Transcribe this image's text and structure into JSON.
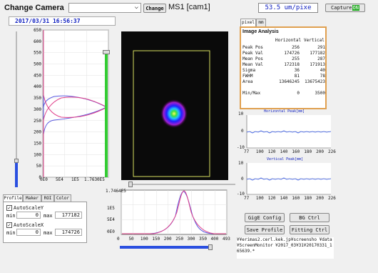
{
  "toolbar": {
    "change_camera_label": "Change Camera",
    "camera_select_value": "",
    "change_button": "Change",
    "camera_name": "MS1 [cam1]",
    "scale_value": "53.5 um/pixe",
    "capture_label": "Capture",
    "capture_state": "ON"
  },
  "timestamp": "2017/03/31  16:56:37",
  "vertical_profile": {
    "x_ticks": [
      "0E0",
      "5E4",
      "1E5",
      "1.7630E5"
    ],
    "y_ticks": [
      "0",
      "50",
      "100",
      "150",
      "200",
      "250",
      "300",
      "350",
      "400",
      "450",
      "500",
      "550",
      "600",
      "650"
    ]
  },
  "horizontal_profile": {
    "y_ticks": [
      "0E0",
      "5E4",
      "1E5",
      "1.7464E5"
    ],
    "x_ticks": [
      "0",
      "50",
      "100",
      "150",
      "200",
      "250",
      "300",
      "350",
      "400",
      "493"
    ]
  },
  "left_tabs": [
    "Profile",
    "Maker",
    "ROI",
    "Color"
  ],
  "autoscale_y": {
    "label": "AutoScaleY",
    "checked": true,
    "min_label": "min",
    "min": "0",
    "max_label": "max",
    "max": "177182"
  },
  "autoscale_x": {
    "label": "AutoScaleX",
    "checked": true,
    "min_label": "min",
    "min": "0",
    "max_label": "max",
    "max": "174726"
  },
  "unit_tabs": [
    "pixel",
    "mm"
  ],
  "analysis": {
    "title": "Image Analysis",
    "col_h": "Horizontal",
    "col_v": "Vertical",
    "rows": [
      {
        "label": "Peak Pos",
        "h": "256",
        "v": "291"
      },
      {
        "label": "Peak Val",
        "h": "174726",
        "v": "177182"
      },
      {
        "label": "Mean Pos",
        "h": "255",
        "v": "287"
      },
      {
        "label": "Mean Val",
        "h": "172318",
        "v": "171913"
      },
      {
        "label": "Sigma",
        "h": "36",
        "v": "40"
      },
      {
        "label": "FWHM",
        "h": "81",
        "v": "78"
      },
      {
        "label": "Area",
        "h": "13646245",
        "v": "13675423"
      },
      {
        "label": "Min/Max",
        "h": "0",
        "v": "3500"
      }
    ]
  },
  "peak_h": {
    "title": "Horizontal Peak[mm]",
    "y_ticks": [
      "10",
      "0",
      "-10"
    ],
    "x_ticks": [
      "77",
      "100",
      "120",
      "140",
      "160",
      "180",
      "200",
      "226"
    ]
  },
  "peak_v": {
    "title": "Vertical Peak[mm]",
    "y_ticks": [
      "10",
      "0",
      "-10"
    ],
    "x_ticks": [
      "77",
      "100",
      "120",
      "140",
      "160",
      "180",
      "200",
      "226"
    ]
  },
  "buttons": {
    "gige_config": "GigE Config",
    "bg_ctrl": "BG Ctrl",
    "save_profile": "Save Profile",
    "fitting_ctrl": "Fitting Ctrl"
  },
  "save_path": "¥¥erimas2.cerl.kek.jp¥screensho ¥data¥ScreenMonitor ¥2017_03¥31¥20170331_165639.*",
  "colors": {
    "profile_measured": "#5a5ae0",
    "profile_fit": "#e0408a",
    "slider_green": "#33cc33",
    "slider_blue": "#2a4fe0",
    "roi": "#d8e060",
    "capture_on": "#22aa22"
  }
}
